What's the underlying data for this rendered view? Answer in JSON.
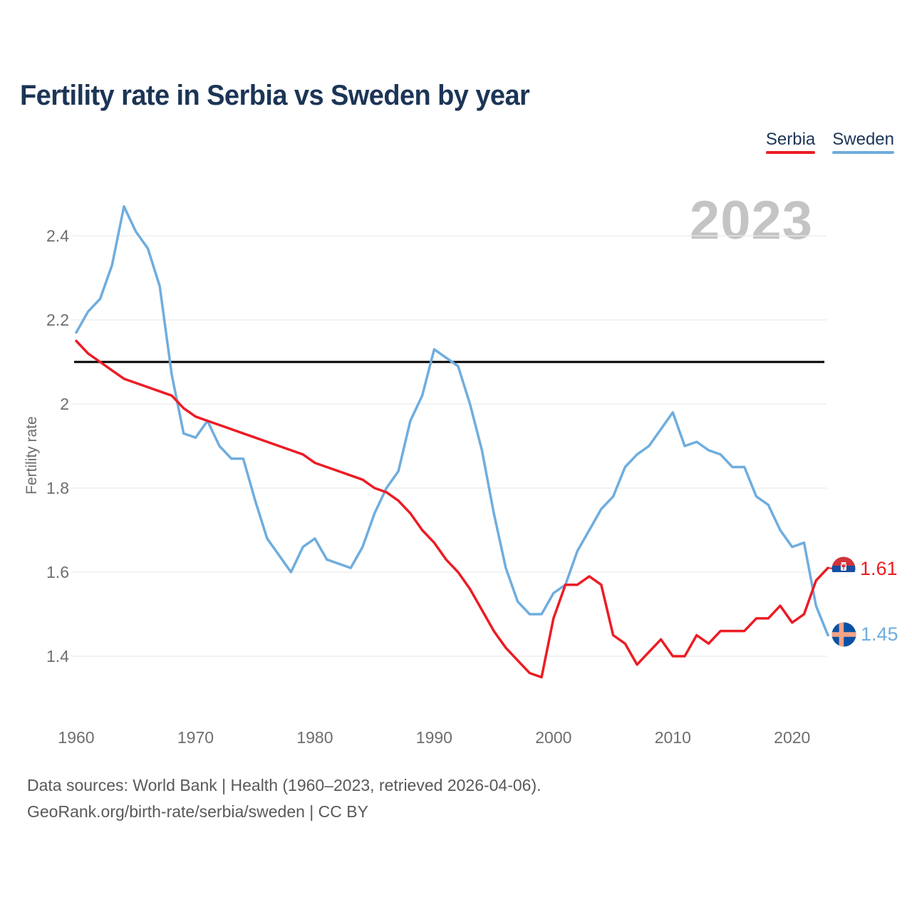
{
  "header": {
    "title": "Fertility rate in Serbia vs Sweden by year"
  },
  "legend": [
    {
      "label": "Serbia",
      "color": "#ec1c24"
    },
    {
      "label": "Sweden",
      "color": "#6fadde"
    }
  ],
  "watermark": "2023",
  "chart_data": {
    "type": "line",
    "title": "Fertility rate in Serbia vs Sweden by year",
    "xlabel": "",
    "ylabel": "Fertility rate",
    "x": [
      1960,
      1961,
      1962,
      1963,
      1964,
      1965,
      1966,
      1967,
      1968,
      1969,
      1970,
      1971,
      1972,
      1973,
      1974,
      1975,
      1976,
      1977,
      1978,
      1979,
      1980,
      1981,
      1982,
      1983,
      1984,
      1985,
      1986,
      1987,
      1988,
      1989,
      1990,
      1991,
      1992,
      1993,
      1994,
      1995,
      1996,
      1997,
      1998,
      1999,
      2000,
      2001,
      2002,
      2003,
      2004,
      2005,
      2006,
      2007,
      2008,
      2009,
      2010,
      2011,
      2012,
      2013,
      2014,
      2015,
      2016,
      2017,
      2018,
      2019,
      2020,
      2021,
      2022,
      2023
    ],
    "series": [
      {
        "name": "Serbia",
        "color": "#ec1c24",
        "end_label": "1.61",
        "values": [
          2.15,
          2.12,
          2.1,
          2.08,
          2.06,
          2.05,
          2.04,
          2.03,
          2.02,
          1.99,
          1.97,
          1.96,
          1.95,
          1.94,
          1.93,
          1.92,
          1.91,
          1.9,
          1.89,
          1.88,
          1.86,
          1.85,
          1.84,
          1.83,
          1.82,
          1.8,
          1.79,
          1.77,
          1.74,
          1.7,
          1.67,
          1.63,
          1.6,
          1.56,
          1.51,
          1.46,
          1.42,
          1.39,
          1.36,
          1.35,
          1.49,
          1.57,
          1.57,
          1.59,
          1.57,
          1.45,
          1.43,
          1.38,
          1.41,
          1.44,
          1.4,
          1.4,
          1.45,
          1.43,
          1.46,
          1.46,
          1.46,
          1.49,
          1.49,
          1.52,
          1.48,
          1.5,
          1.58,
          1.61
        ]
      },
      {
        "name": "Sweden",
        "color": "#6fadde",
        "end_label": "1.45",
        "values": [
          2.17,
          2.22,
          2.25,
          2.33,
          2.47,
          2.41,
          2.37,
          2.28,
          2.07,
          1.93,
          1.92,
          1.96,
          1.9,
          1.87,
          1.87,
          1.77,
          1.68,
          1.64,
          1.6,
          1.66,
          1.68,
          1.63,
          1.62,
          1.61,
          1.66,
          1.74,
          1.8,
          1.84,
          1.96,
          2.02,
          2.13,
          2.11,
          2.09,
          2.0,
          1.89,
          1.74,
          1.61,
          1.53,
          1.5,
          1.5,
          1.55,
          1.57,
          1.65,
          1.7,
          1.75,
          1.78,
          1.85,
          1.88,
          1.9,
          1.94,
          1.98,
          1.9,
          1.91,
          1.89,
          1.88,
          1.85,
          1.85,
          1.78,
          1.76,
          1.7,
          1.66,
          1.67,
          1.52,
          1.45
        ]
      }
    ],
    "y_ticks": [
      1.4,
      1.6,
      1.8,
      2,
      2.2,
      2.4
    ],
    "x_ticks": [
      1960,
      1970,
      1980,
      1990,
      2000,
      2010,
      2020
    ],
    "ylim": [
      1.3,
      2.52
    ],
    "reference_line": 2.1,
    "grid": "horizontal",
    "legend_position": "top-right"
  },
  "footer": {
    "line1": "Data sources: World Bank | Health (1960–2023, retrieved 2026-04-06).",
    "line2": "GeoRank.org/birth-rate/serbia/sweden | CC BY"
  }
}
